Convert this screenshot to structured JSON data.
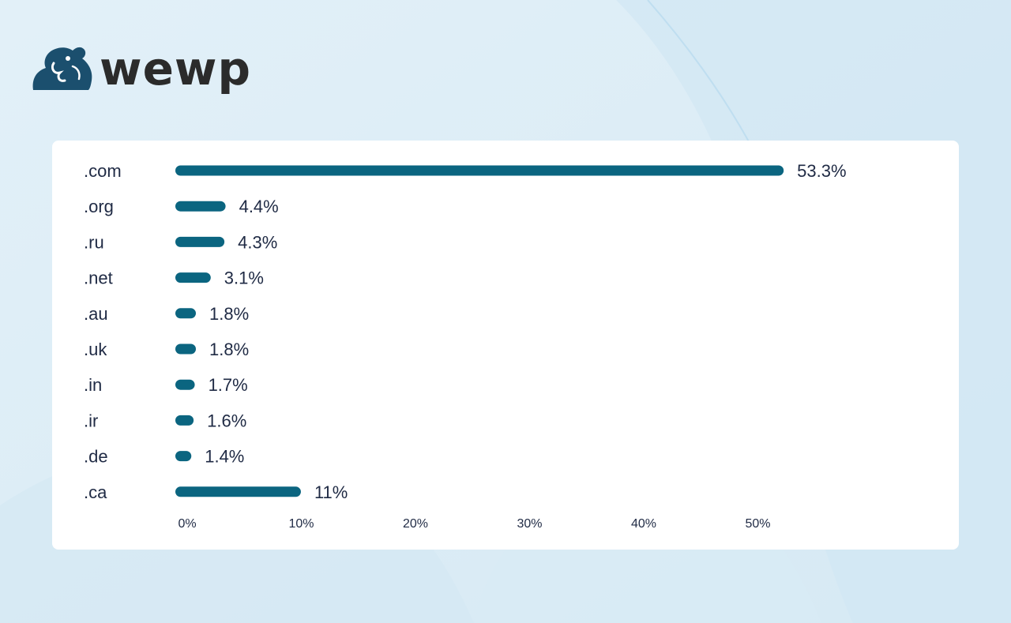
{
  "brand": {
    "name": "wewp",
    "logo_icon": "elephant-icon",
    "logo_color": "#1b4f6e",
    "text_color": "#2b2b2b"
  },
  "chart_data": {
    "type": "bar",
    "orientation": "horizontal",
    "categories": [
      ".com",
      ".org",
      ".ru",
      ".net",
      ".au",
      ".uk",
      ".in",
      ".ir",
      ".de",
      ".ca"
    ],
    "values": [
      53.3,
      4.4,
      4.3,
      3.1,
      1.8,
      1.8,
      1.7,
      1.6,
      1.4,
      11
    ],
    "value_labels": [
      "53.3%",
      "4.4%",
      "4.3%",
      "3.1%",
      "1.8%",
      "1.8%",
      "1.7%",
      "1.6%",
      "1.4%",
      "11%"
    ],
    "x_ticks": [
      0,
      10,
      20,
      30,
      40,
      50
    ],
    "x_tick_labels": [
      "0%",
      "10%",
      "20%",
      "30%",
      "40%",
      "50%"
    ],
    "xlim": [
      0,
      54
    ],
    "grid": false,
    "bar_color": "#0b6580",
    "title": "",
    "xlabel": "",
    "ylabel": ""
  }
}
